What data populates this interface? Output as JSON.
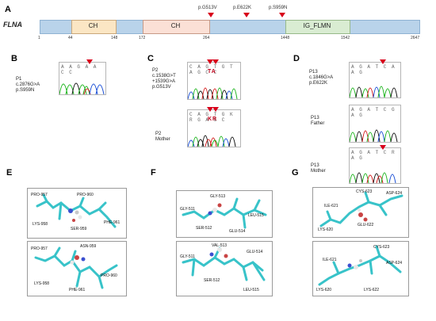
{
  "panels": {
    "a": "A",
    "b": "B",
    "c": "C",
    "d": "D",
    "e": "E",
    "f": "F",
    "g": "G"
  },
  "colors": {
    "ch_domain": "#fbe6c4",
    "ch2_domain": "#fbe0d6",
    "ig_domain": "#d9ecd2",
    "backbone": "#b9d3ea",
    "mutation_marker": "#d8001a",
    "stick_model": "#38c3c9"
  },
  "panel_a": {
    "gene": "FLNA",
    "domains": [
      {
        "label": "CH",
        "start": 44,
        "end": 148
      },
      {
        "label": "CH",
        "start": 172,
        "end": 264
      },
      {
        "label": "IG_FLMN",
        "start": 1448,
        "end": 1542
      }
    ],
    "positions": [
      "1",
      "44",
      "148",
      "172",
      "264",
      "1448",
      "1542",
      "2647"
    ],
    "variants": [
      "p.G513V",
      "p.E622K",
      "p.S959N"
    ]
  },
  "panel_b": {
    "sequence": "A A G A A C C",
    "lines": [
      "P1",
      "c.2876G>A",
      "p.S959N"
    ]
  },
  "panel_c": {
    "top_sequence": "C A G T G T A G C C",
    "bottom_sequence": "C A G T G K R G A G C",
    "top_lines": [
      "P2",
      "c.1538G>T",
      "+1539G>A",
      "p.G513V"
    ],
    "bottom_lines": [
      "P2",
      "Mother"
    ],
    "top_highlight": "TA",
    "bottom_highlight": "KR"
  },
  "panel_d": {
    "top_sequence": "A G A T C A A G",
    "mid_sequence": "A G A T C G A G",
    "bottom_sequence": "A G A T C R A G",
    "top_lines": [
      "P13",
      "c.1846G>A",
      "p.E622K"
    ],
    "mid_lines": [
      "P13",
      "Father"
    ],
    "bottom_lines": [
      "P13",
      "Mother"
    ]
  },
  "panel_e": {
    "top_residues": [
      "PRO-957",
      "PRO-960",
      "LYS-958",
      "SER-959",
      "PHE-961"
    ],
    "bottom_residues": [
      "PRO-957",
      "ASN-959",
      "LYS-958",
      "PRO-960",
      "PHE-961"
    ]
  },
  "panel_f": {
    "top_residues": [
      "GLY-513",
      "GLY-511",
      "LEU-515",
      "SER-512",
      "GLU-514"
    ],
    "bottom_residues": [
      "VAL-513",
      "GLY-511",
      "GLU-514",
      "SER-512",
      "LEU-515"
    ]
  },
  "panel_g": {
    "top_residues": [
      "CYS-623",
      "ILE-621",
      "ASP-624",
      "GLU-622",
      "LYS-620"
    ],
    "bottom_residues": [
      "CYS-623",
      "ILE-621",
      "ASP-624",
      "LYS-620",
      "LYS-622"
    ]
  }
}
